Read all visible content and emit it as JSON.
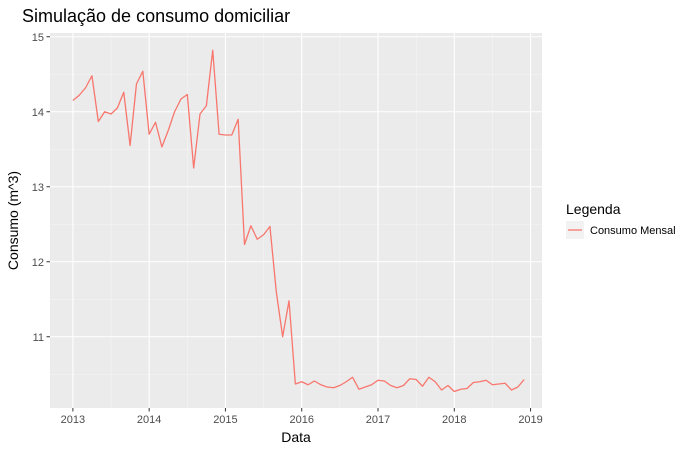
{
  "chart_data": {
    "type": "line",
    "title": "Simulação de consumo domiciliar",
    "xlabel": "Data",
    "ylabel": "Consumo (m^3)",
    "xlim": [
      2012.7,
      2019.15
    ],
    "ylim": [
      10.05,
      15.05
    ],
    "x_ticks": [
      2013,
      2014,
      2015,
      2016,
      2017,
      2018,
      2019
    ],
    "x_tick_labels": [
      "2013",
      "2014",
      "2015",
      "2016",
      "2017",
      "2018",
      "2019"
    ],
    "y_ticks": [
      11,
      12,
      13,
      14,
      15
    ],
    "y_tick_labels": [
      "11",
      "12",
      "13",
      "14",
      "15"
    ],
    "grid": true,
    "legend": {
      "title": "Legenda",
      "position": "right"
    },
    "series": [
      {
        "name": "Consumo Mensal",
        "color": "#F8766D",
        "x_start": 2013,
        "x_step_months": 1,
        "values": [
          14.15,
          14.22,
          14.32,
          14.48,
          13.87,
          14.0,
          13.97,
          14.05,
          14.26,
          13.55,
          14.37,
          14.54,
          13.7,
          13.86,
          13.53,
          13.75,
          14.0,
          14.17,
          14.23,
          13.25,
          13.97,
          14.08,
          14.82,
          13.7,
          13.69,
          13.69,
          13.9,
          12.23,
          12.48,
          12.3,
          12.36,
          12.47,
          11.6,
          11.0,
          11.48,
          10.37,
          10.4,
          10.36,
          10.41,
          10.36,
          10.33,
          10.32,
          10.35,
          10.4,
          10.46,
          10.3,
          10.33,
          10.36,
          10.42,
          10.41,
          10.35,
          10.32,
          10.35,
          10.44,
          10.43,
          10.34,
          10.46,
          10.4,
          10.29,
          10.35,
          10.27,
          10.3,
          10.31,
          10.39,
          10.4,
          10.42,
          10.36,
          10.37,
          10.38,
          10.29,
          10.33,
          10.43
        ]
      }
    ]
  }
}
